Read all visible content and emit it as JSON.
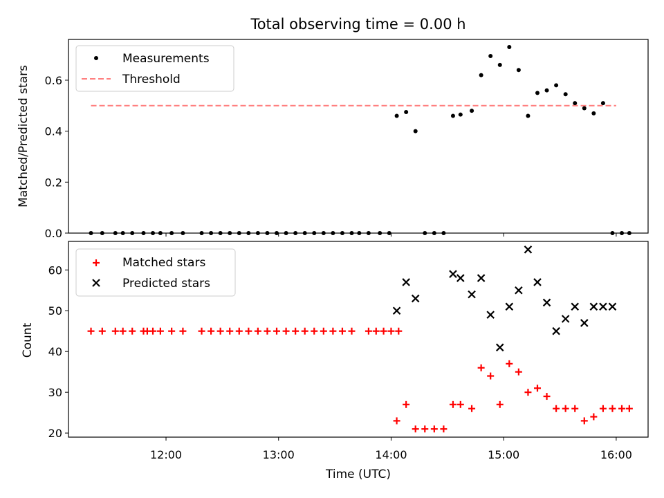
{
  "chart_data": [
    {
      "type": "scatter",
      "title": "Total observing time = 0.00 h",
      "xlabel": "",
      "ylabel": "Matched/Predicted stars",
      "ylim": [
        0,
        0.76
      ],
      "xlim": [
        "11:08",
        "16:17"
      ],
      "yticks": [
        0.0,
        0.2,
        0.4,
        0.6
      ],
      "ytick_labels": [
        "0.0",
        "0.2",
        "0.4",
        "0.6"
      ],
      "grid": false,
      "legend_position": "top-left",
      "series": [
        {
          "name": "Measurements",
          "marker": "dot",
          "color": "#000000",
          "x": [
            "11:20",
            "11:26",
            "11:33",
            "11:37",
            "11:42",
            "11:48",
            "11:53",
            "11:57",
            "12:03",
            "12:09",
            "12:19",
            "12:24",
            "12:29",
            "12:34",
            "12:39",
            "12:44",
            "12:49",
            "12:54",
            "12:59",
            "13:04",
            "13:09",
            "13:14",
            "13:19",
            "13:24",
            "13:29",
            "13:34",
            "13:39",
            "13:43",
            "13:48",
            "13:54",
            "13:59",
            "14:03",
            "14:08",
            "14:13",
            "14:18",
            "14:23",
            "14:28",
            "14:33",
            "14:37",
            "14:43",
            "14:48",
            "14:53",
            "14:58",
            "15:03",
            "15:08",
            "15:13",
            "15:18",
            "15:23",
            "15:28",
            "15:33",
            "15:38",
            "15:43",
            "15:48",
            "15:53",
            "15:58",
            "16:03",
            "16:07"
          ],
          "y": [
            0.0,
            0.0,
            0.0,
            0.0,
            0.0,
            0.0,
            0.0,
            0.0,
            0.0,
            0.0,
            0.0,
            0.0,
            0.0,
            0.0,
            0.0,
            0.0,
            0.0,
            0.0,
            0.0,
            0.0,
            0.0,
            0.0,
            0.0,
            0.0,
            0.0,
            0.0,
            0.0,
            0.0,
            0.0,
            0.0,
            0.0,
            0.46,
            0.475,
            0.4,
            0.0,
            0.0,
            0.0,
            0.46,
            0.465,
            0.48,
            0.62,
            0.695,
            0.66,
            0.73,
            0.64,
            0.46,
            0.55,
            0.56,
            0.58,
            0.545,
            0.51,
            0.49,
            0.47,
            0.51,
            0.0,
            0.0,
            0.0
          ]
        },
        {
          "name": "Threshold",
          "style": "dashed",
          "color": "#ff7f7f",
          "x": [
            "11:20",
            "16:00"
          ],
          "y": [
            0.5,
            0.5
          ]
        }
      ]
    },
    {
      "type": "scatter",
      "title": "",
      "xlabel": "Time (UTC)",
      "ylabel": "Count",
      "ylim": [
        19,
        67
      ],
      "xlim": [
        "11:08",
        "16:17"
      ],
      "yticks": [
        20,
        30,
        40,
        50,
        60
      ],
      "ytick_labels": [
        "20",
        "30",
        "40",
        "50",
        "60"
      ],
      "xticks": [
        "12:00",
        "13:00",
        "14:00",
        "15:00",
        "16:00"
      ],
      "xtick_labels": [
        "12:00",
        "13:00",
        "14:00",
        "15:00",
        "16:00"
      ],
      "grid": false,
      "legend_position": "top-left",
      "series": [
        {
          "name": "Matched stars",
          "marker": "plus",
          "color": "#ff0000",
          "x": [
            "11:20",
            "11:26",
            "11:33",
            "11:37",
            "11:42",
            "11:48",
            "11:50",
            "11:53",
            "11:57",
            "12:03",
            "12:09",
            "12:19",
            "12:24",
            "12:29",
            "12:34",
            "12:39",
            "12:44",
            "12:49",
            "12:54",
            "12:59",
            "13:04",
            "13:09",
            "13:14",
            "13:19",
            "13:24",
            "13:29",
            "13:34",
            "13:39",
            "13:48",
            "13:52",
            "13:56",
            "14:00",
            "14:04",
            "14:03",
            "14:08",
            "14:13",
            "14:18",
            "14:23",
            "14:28",
            "14:33",
            "14:37",
            "14:43",
            "14:48",
            "14:53",
            "14:58",
            "15:03",
            "15:08",
            "15:13",
            "15:18",
            "15:23",
            "15:28",
            "15:33",
            "15:38",
            "15:43",
            "15:48",
            "15:53",
            "15:58",
            "16:03",
            "16:07"
          ],
          "y": [
            45,
            45,
            45,
            45,
            45,
            45,
            45,
            45,
            45,
            45,
            45,
            45,
            45,
            45,
            45,
            45,
            45,
            45,
            45,
            45,
            45,
            45,
            45,
            45,
            45,
            45,
            45,
            45,
            45,
            45,
            45,
            45,
            45,
            23,
            27,
            21,
            21,
            21,
            21,
            27,
            27,
            26,
            36,
            34,
            27,
            37,
            35,
            30,
            31,
            29,
            26,
            26,
            26,
            23,
            24,
            26,
            26,
            26,
            26
          ]
        },
        {
          "name": "Predicted stars",
          "marker": "x",
          "color": "#000000",
          "x": [
            "14:03",
            "14:08",
            "14:13",
            "14:33",
            "14:37",
            "14:43",
            "14:48",
            "14:53",
            "14:58",
            "15:03",
            "15:08",
            "15:13",
            "15:18",
            "15:23",
            "15:28",
            "15:33",
            "15:38",
            "15:43",
            "15:48",
            "15:53",
            "15:58"
          ],
          "y": [
            50,
            57,
            53,
            59,
            58,
            54,
            58,
            49,
            41,
            51,
            55,
            65,
            57,
            52,
            45,
            48,
            51,
            47,
            51,
            51,
            51
          ]
        }
      ]
    }
  ]
}
